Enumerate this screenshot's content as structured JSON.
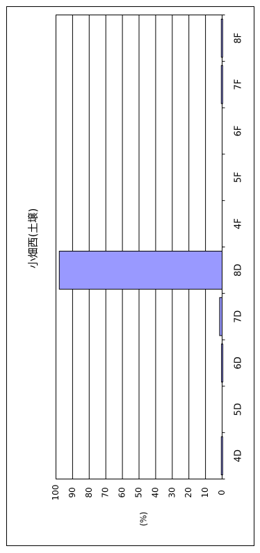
{
  "chart_data": {
    "type": "bar",
    "orientation": "rotated-90",
    "title": "小畑西(土壌)",
    "ylabel": "(%)",
    "xlabel": "",
    "categories": [
      "4D",
      "5D",
      "6D",
      "7D",
      "8D",
      "4F",
      "5F",
      "6F",
      "7F",
      "8F"
    ],
    "values": [
      0.5,
      0,
      0.4,
      1.5,
      98,
      0,
      0,
      0,
      0.5,
      0.5
    ],
    "ylim": [
      0,
      100
    ],
    "yticks": [
      0,
      10,
      20,
      30,
      40,
      50,
      60,
      70,
      80,
      90,
      100
    ],
    "grid": true,
    "colors": {
      "bar_fill": "#9999ff",
      "bar_stroke": "#000000",
      "frame": "#000000"
    }
  }
}
